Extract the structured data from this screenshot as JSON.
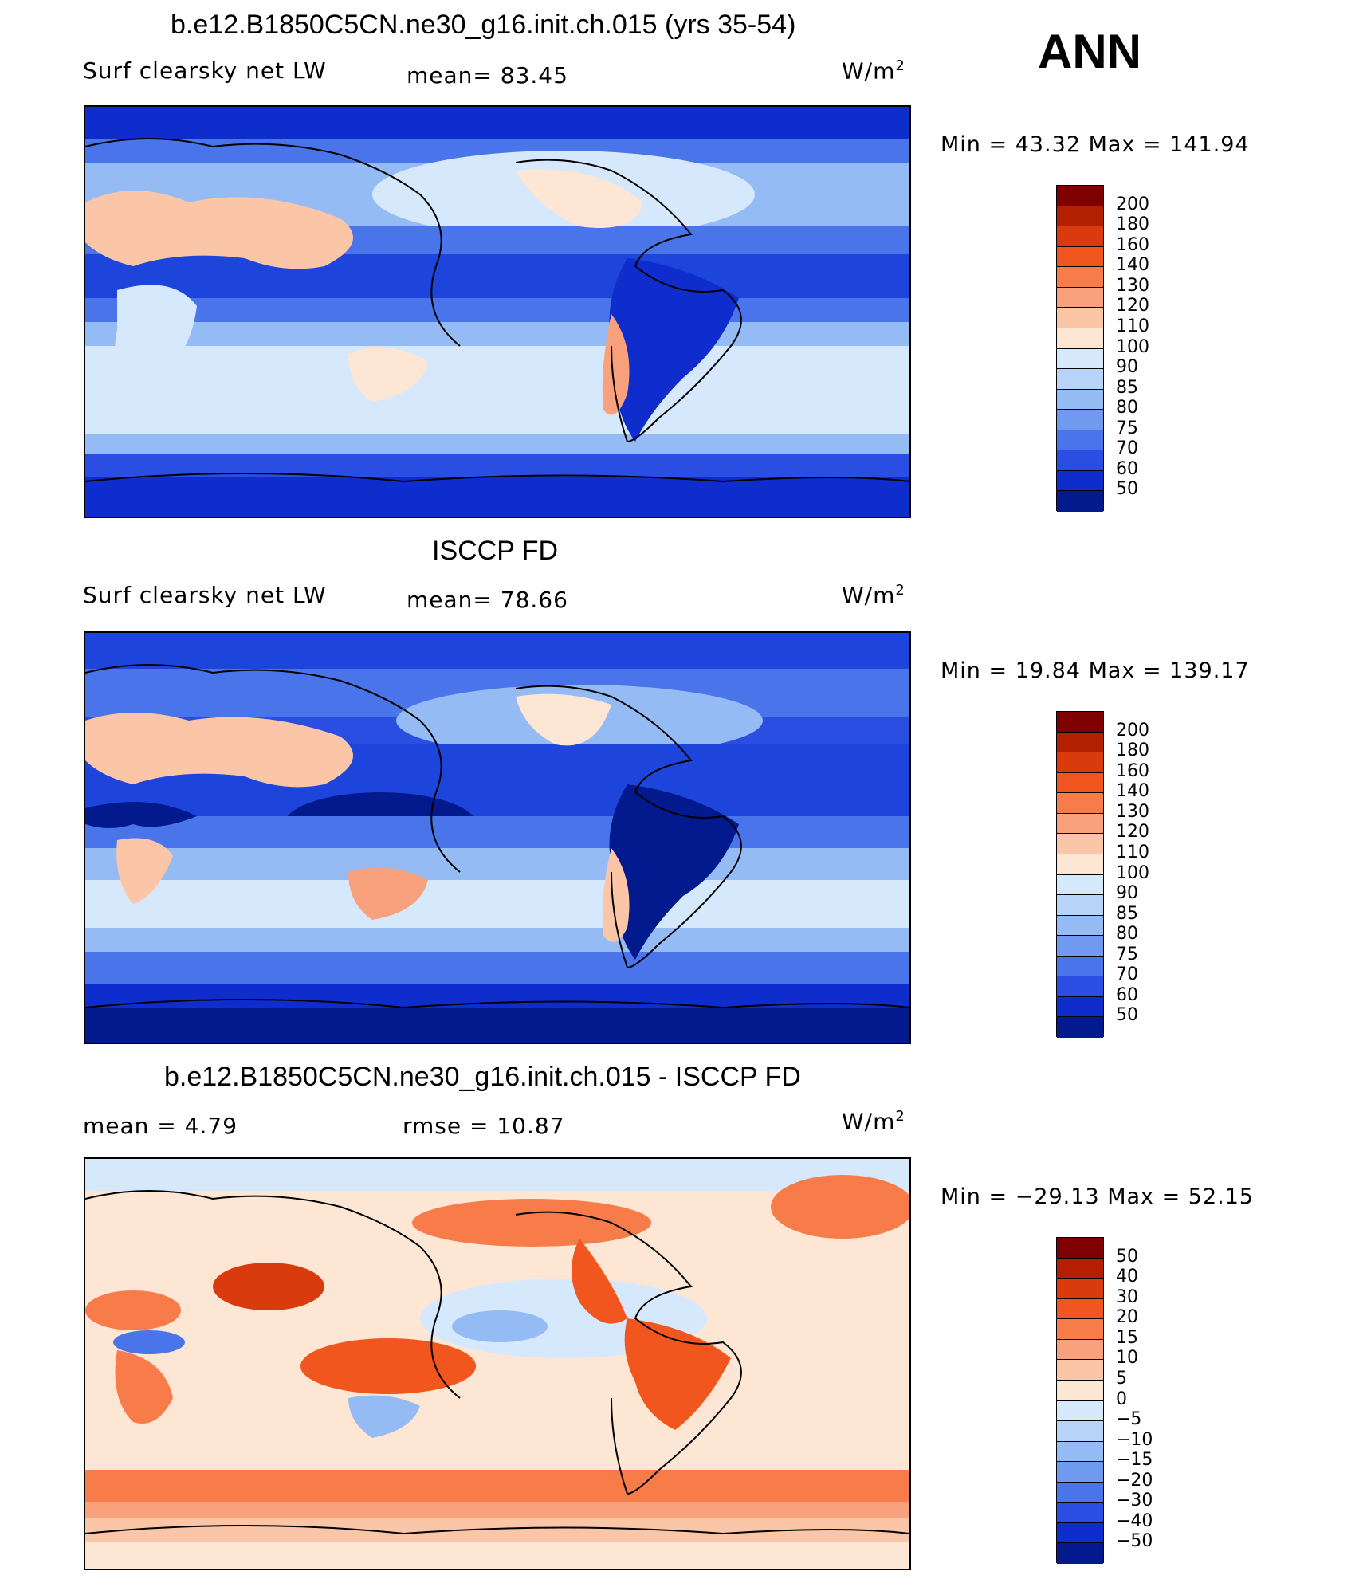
{
  "annotation": "ANN",
  "panels": [
    {
      "title": "b.e12.B1850C5CN.ne30_g16.init.ch.015 (yrs 35-54)",
      "left_label": "Surf  clearsky  net  LW",
      "mid_label": "mean=  83.45",
      "units": "W/m",
      "units_sup": "2",
      "minmax": "Min  =   43.32  Max  =  141.94",
      "levels": [
        "200",
        "180",
        "160",
        "140",
        "130",
        "120",
        "110",
        "100",
        "90",
        "85",
        "80",
        "75",
        "70",
        "60",
        "50"
      ],
      "colors": [
        "#7f0000",
        "#b22000",
        "#d93a0e",
        "#f0561e",
        "#f77c4a",
        "#f9a17c",
        "#fbc6a8",
        "#fde6d3",
        "#d6e8fb",
        "#b7d3f7",
        "#95bbf4",
        "#6f9af0",
        "#4a74ea",
        "#2a4ee2",
        "#0f2ccd",
        "#031a8f"
      ]
    },
    {
      "title": "ISCCP FD",
      "left_label": "Surf  clearsky  net  LW",
      "mid_label": "mean=  78.66",
      "units": "W/m",
      "units_sup": "2",
      "minmax": "Min  =   19.84  Max  =  139.17",
      "levels": [
        "200",
        "180",
        "160",
        "140",
        "130",
        "120",
        "110",
        "100",
        "90",
        "85",
        "80",
        "75",
        "70",
        "60",
        "50"
      ],
      "colors": [
        "#7f0000",
        "#b22000",
        "#d93a0e",
        "#f0561e",
        "#f77c4a",
        "#f9a17c",
        "#fbc6a8",
        "#fde6d3",
        "#d6e8fb",
        "#b7d3f7",
        "#95bbf4",
        "#6f9af0",
        "#4a74ea",
        "#2a4ee2",
        "#0f2ccd",
        "#031a8f"
      ]
    },
    {
      "title": "b.e12.B1850C5CN.ne30_g16.init.ch.015 - ISCCP FD",
      "left_label": "mean  =    4.79",
      "mid_label": "rmse  =   10.87",
      "units": "W/m",
      "units_sup": "2",
      "minmax": "Min  = −29.13  Max  =    52.15",
      "levels": [
        "50",
        "40",
        "30",
        "20",
        "15",
        "10",
        "5",
        "0",
        "−5",
        "−10",
        "−15",
        "−20",
        "−30",
        "−40",
        "−50"
      ],
      "colors": [
        "#7f0000",
        "#b22000",
        "#d93a0e",
        "#f0561e",
        "#f77c4a",
        "#f9a17c",
        "#fbc6a8",
        "#fde6d3",
        "#d6e8fb",
        "#b7d3f7",
        "#95bbf4",
        "#6f9af0",
        "#4a74ea",
        "#2a4ee2",
        "#0f2ccd",
        "#031a8f"
      ]
    }
  ]
}
